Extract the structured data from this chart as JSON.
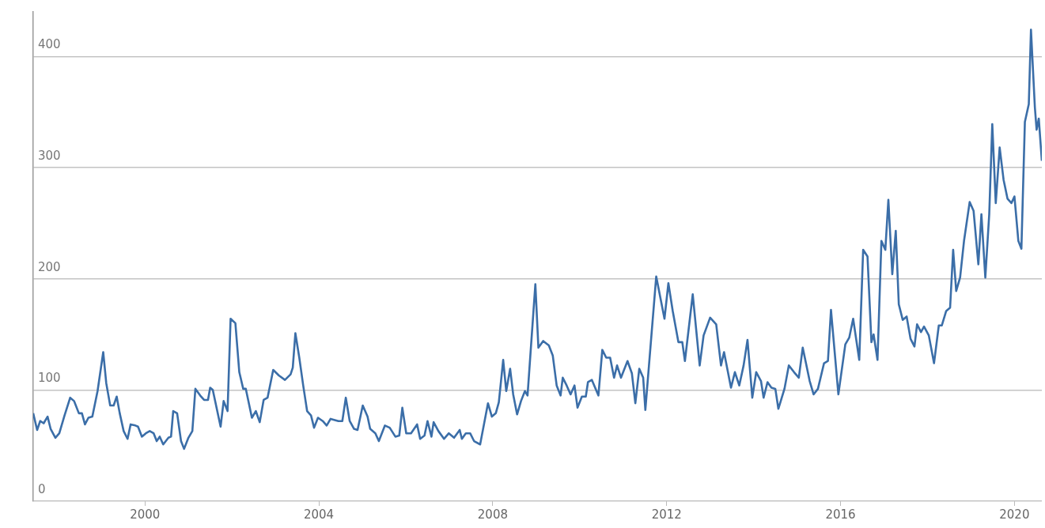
{
  "chart_data": {
    "type": "line",
    "x": [
      1997.43,
      1997.52,
      1997.59,
      1997.67,
      1997.76,
      1997.83,
      1997.94,
      1998.03,
      1998.15,
      1998.28,
      1998.37,
      1998.48,
      1998.55,
      1998.62,
      1998.7,
      1998.79,
      1998.91,
      1999.04,
      1999.11,
      1999.2,
      1999.28,
      1999.35,
      1999.42,
      1999.51,
      1999.6,
      1999.67,
      1999.78,
      1999.84,
      1999.93,
      2000.02,
      2000.11,
      2000.2,
      2000.27,
      2000.34,
      2000.42,
      2000.54,
      2000.6,
      2000.65,
      2000.74,
      2000.83,
      2000.9,
      2001.0,
      2001.09,
      2001.16,
      2001.27,
      2001.36,
      2001.45,
      2001.5,
      2001.56,
      2001.74,
      2001.81,
      2001.9,
      2001.97,
      2002.08,
      2002.17,
      2002.26,
      2002.32,
      2002.46,
      2002.55,
      2002.64,
      2002.73,
      2002.82,
      2002.95,
      2003.08,
      2003.22,
      2003.35,
      2003.4,
      2003.46,
      2003.55,
      2003.64,
      2003.73,
      2003.82,
      2003.89,
      2003.98,
      2004.09,
      2004.18,
      2004.27,
      2004.45,
      2004.54,
      2004.62,
      2004.71,
      2004.81,
      2004.89,
      2005.01,
      2005.12,
      2005.18,
      2005.3,
      2005.38,
      2005.52,
      2005.63,
      2005.76,
      2005.85,
      2005.92,
      2006.01,
      2006.12,
      2006.26,
      2006.33,
      2006.43,
      2006.5,
      2006.59,
      2006.64,
      2006.75,
      2006.88,
      2006.99,
      2007.11,
      2007.24,
      2007.29,
      2007.38,
      2007.48,
      2007.57,
      2007.71,
      2007.89,
      2007.98,
      2008.07,
      2008.14,
      2008.24,
      2008.31,
      2008.4,
      2008.47,
      2008.56,
      2008.65,
      2008.74,
      2008.8,
      2008.98,
      2009.05,
      2009.16,
      2009.29,
      2009.38,
      2009.47,
      2009.56,
      2009.61,
      2009.7,
      2009.79,
      2009.88,
      2009.95,
      2010.05,
      2010.14,
      2010.19,
      2010.28,
      2010.43,
      2010.52,
      2010.61,
      2010.7,
      2010.79,
      2010.86,
      2010.95,
      2011.1,
      2011.2,
      2011.28,
      2011.37,
      2011.46,
      2011.51,
      2011.76,
      2011.95,
      2012.04,
      2012.14,
      2012.27,
      2012.36,
      2012.42,
      2012.6,
      2012.76,
      2012.85,
      2013.0,
      2013.14,
      2013.25,
      2013.32,
      2013.48,
      2013.57,
      2013.67,
      2013.77,
      2013.86,
      2013.97,
      2014.06,
      2014.17,
      2014.23,
      2014.32,
      2014.41,
      2014.5,
      2014.57,
      2014.71,
      2014.81,
      2014.93,
      2015.04,
      2015.13,
      2015.29,
      2015.38,
      2015.48,
      2015.62,
      2015.71,
      2015.78,
      2015.95,
      2016.11,
      2016.2,
      2016.29,
      2016.43,
      2016.52,
      2016.62,
      2016.71,
      2016.76,
      2016.85,
      2016.94,
      2017.03,
      2017.1,
      2017.19,
      2017.27,
      2017.34,
      2017.43,
      2017.52,
      2017.61,
      2017.7,
      2017.76,
      2017.85,
      2017.92,
      2018.03,
      2018.15,
      2018.26,
      2018.33,
      2018.43,
      2018.52,
      2018.59,
      2018.66,
      2018.75,
      2018.84,
      2018.97,
      2019.06,
      2019.17,
      2019.24,
      2019.33,
      2019.42,
      2019.49,
      2019.57,
      2019.66,
      2019.75,
      2019.84,
      2019.93,
      2020.0,
      2020.09,
      2020.16,
      2020.24,
      2020.33,
      2020.38,
      2020.47,
      2020.51,
      2020.56,
      2020.63
    ],
    "values": [
      79,
      64,
      72,
      70,
      76,
      65,
      57,
      61,
      77,
      93,
      90,
      79,
      79,
      69,
      75,
      76,
      99,
      134,
      106,
      86,
      86,
      94,
      79,
      63,
      56,
      69,
      68,
      67,
      58,
      61,
      63,
      61,
      54,
      58,
      51,
      57,
      58,
      81,
      79,
      54,
      47,
      57,
      63,
      101,
      95,
      91,
      91,
      102,
      100,
      67,
      90,
      81,
      164,
      160,
      116,
      101,
      101,
      75,
      81,
      71,
      91,
      93,
      118,
      113,
      109,
      114,
      120,
      151,
      129,
      104,
      81,
      77,
      66,
      75,
      72,
      68,
      74,
      72,
      72,
      93,
      72,
      65,
      64,
      86,
      76,
      65,
      61,
      54,
      68,
      66,
      58,
      59,
      84,
      61,
      61,
      69,
      56,
      59,
      72,
      58,
      71,
      63,
      56,
      61,
      57,
      64,
      56,
      61,
      61,
      54,
      51,
      88,
      76,
      79,
      89,
      127,
      99,
      119,
      96,
      78,
      90,
      99,
      95,
      195,
      138,
      144,
      140,
      131,
      104,
      95,
      111,
      104,
      96,
      104,
      84,
      94,
      94,
      107,
      109,
      95,
      136,
      129,
      129,
      111,
      122,
      111,
      126,
      115,
      88,
      119,
      111,
      82,
      202,
      164,
      196,
      171,
      143,
      143,
      126,
      186,
      122,
      149,
      165,
      159,
      122,
      134,
      102,
      116,
      104,
      122,
      145,
      93,
      116,
      108,
      93,
      107,
      102,
      101,
      83,
      101,
      122,
      116,
      111,
      138,
      108,
      96,
      101,
      124,
      126,
      172,
      96,
      141,
      147,
      164,
      127,
      226,
      220,
      143,
      150,
      127,
      234,
      226,
      271,
      204,
      243,
      177,
      163,
      166,
      146,
      139,
      159,
      152,
      157,
      149,
      124,
      158,
      158,
      171,
      174,
      226,
      189,
      201,
      234,
      269,
      261,
      213,
      258,
      201,
      258,
      339,
      268,
      318,
      289,
      272,
      268,
      274,
      234,
      227,
      341,
      357,
      424,
      354,
      334,
      344,
      306
    ],
    "color": "#3b6ea8",
    "xlim": [
      1997.43,
      2020.63
    ],
    "xticks": [
      2000,
      2004,
      2008,
      2012,
      2016,
      2020
    ],
    "ylim": [
      0,
      440
    ],
    "yticks": [
      0,
      100,
      200,
      300,
      400
    ],
    "grid": "y",
    "marker": "none"
  }
}
